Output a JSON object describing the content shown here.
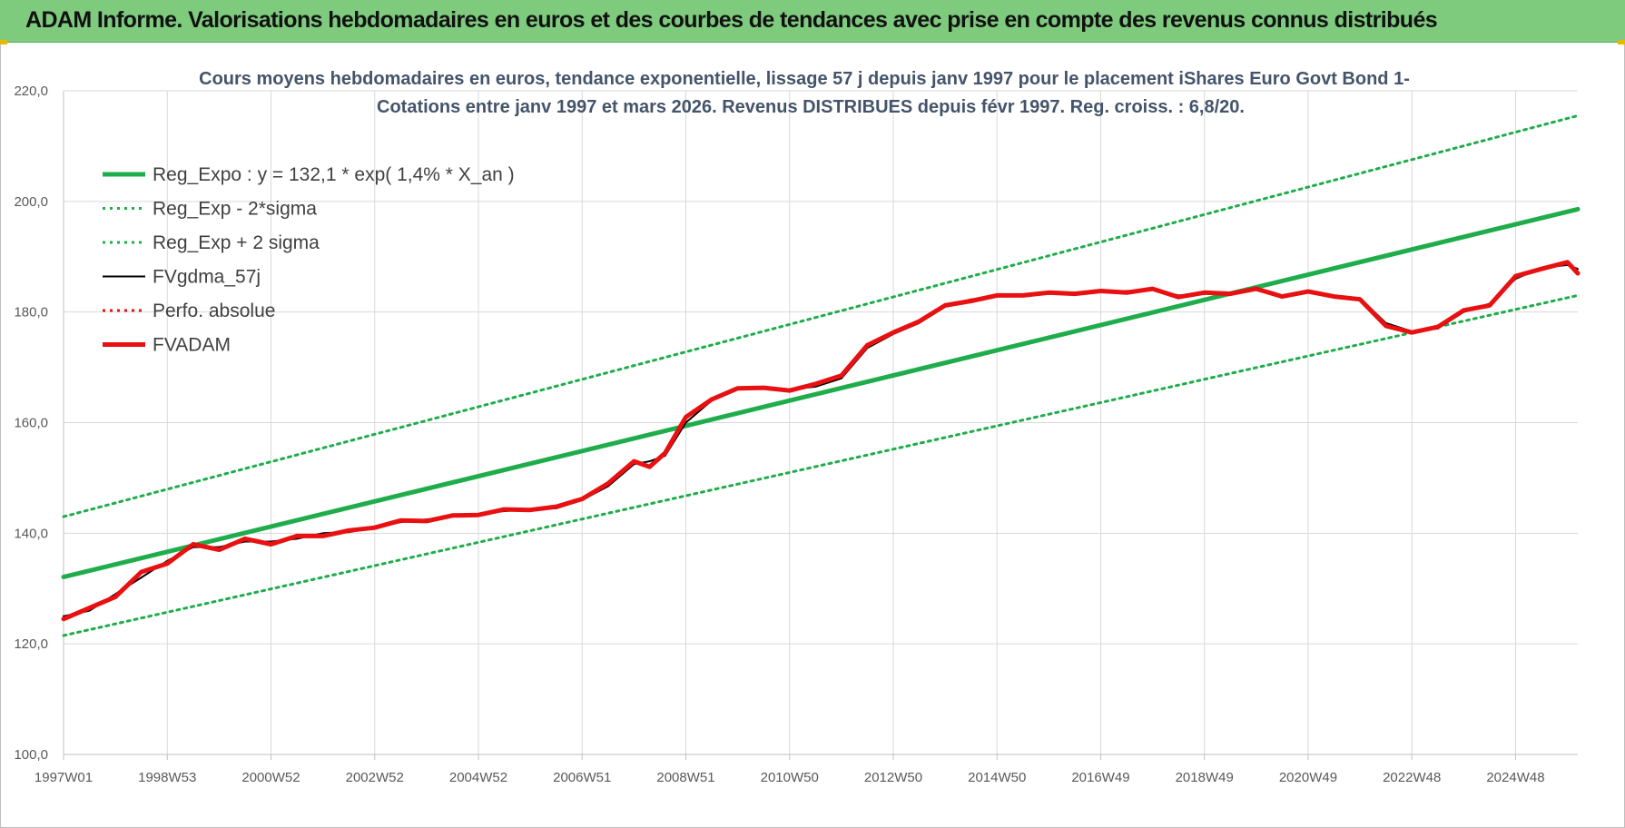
{
  "banner": {
    "title": "ADAM Informe. Valorisations hebdomadaires en euros et des courbes de tendances avec prise en compte des revenus connus distribués",
    "bg_color": "#7ecb7e"
  },
  "chart_data": {
    "type": "line",
    "title_line1": "Cours moyens hebdomadaires en euros, tendance exponentielle, lissage 57 j depuis janv 1997  pour le placement iShares Euro Govt Bond 1-",
    "title_line2": "Cotations entre janv 1997 et mars 2026. Revenus DISTRIBUES depuis févr 1997. Reg. croiss. : 6,8/20.",
    "xlabel": "",
    "ylabel": "",
    "xlim": [
      1997.0,
      2026.2
    ],
    "ylim": [
      100,
      220
    ],
    "grid": true,
    "legend_position": "top-left",
    "y_ticks": [
      "100,0",
      "120,0",
      "140,0",
      "160,0",
      "180,0",
      "200,0",
      "220,0"
    ],
    "x_ticks": [
      {
        "label": "1997W01",
        "t": 1997.0
      },
      {
        "label": "1998W53",
        "t": 1999.0
      },
      {
        "label": "2000W52",
        "t": 2001.0
      },
      {
        "label": "2002W52",
        "t": 2003.0
      },
      {
        "label": "2004W52",
        "t": 2005.0
      },
      {
        "label": "2006W51",
        "t": 2007.0
      },
      {
        "label": "2008W51",
        "t": 2009.0
      },
      {
        "label": "2010W50",
        "t": 2011.0
      },
      {
        "label": "2012W50",
        "t": 2013.0
      },
      {
        "label": "2014W50",
        "t": 2015.0
      },
      {
        "label": "2016W49",
        "t": 2017.0
      },
      {
        "label": "2018W49",
        "t": 2019.0
      },
      {
        "label": "2020W49",
        "t": 2021.0
      },
      {
        "label": "2022W48",
        "t": 2023.0
      },
      {
        "label": "2024W48",
        "t": 2025.0
      }
    ],
    "series": [
      {
        "name": "Reg_Expo : y = 132,1 * exp( 1,4% *  X_an )",
        "color": "#1fad4b",
        "style": "thick",
        "x": [
          1997.0,
          2026.2
        ],
        "y": [
          132.1,
          198.6
        ]
      },
      {
        "name": "Reg_Exp - 2*sigma",
        "color": "#1fad4b",
        "style": "dotted",
        "x": [
          1997.0,
          2026.2
        ],
        "y": [
          121.5,
          183.0
        ]
      },
      {
        "name": "Reg_Exp + 2 sigma",
        "color": "#1fad4b",
        "style": "dotted",
        "x": [
          1997.0,
          2026.2
        ],
        "y": [
          143.0,
          215.5
        ]
      },
      {
        "name": "FVgdma_57j",
        "color": "#000000",
        "style": "thin",
        "x": [
          1997.0,
          1997.5,
          1998.0,
          1998.5,
          1999.0,
          1999.5,
          2000.0,
          2000.5,
          2001.0,
          2001.5,
          2002.0,
          2002.5,
          2003.0,
          2003.5,
          2004.0,
          2004.5,
          2005.0,
          2005.5,
          2006.0,
          2006.5,
          2007.0,
          2007.5,
          2008.0,
          2008.3,
          2008.6,
          2009.0,
          2009.5,
          2010.0,
          2010.5,
          2011.0,
          2011.5,
          2012.0,
          2012.5,
          2013.0,
          2013.5,
          2014.0,
          2014.5,
          2015.0,
          2015.5,
          2016.0,
          2016.5,
          2017.0,
          2017.5,
          2018.0,
          2018.5,
          2019.0,
          2019.5,
          2020.0,
          2020.5,
          2021.0,
          2021.5,
          2022.0,
          2022.5,
          2023.0,
          2023.5,
          2024.0,
          2024.5,
          2025.0,
          2025.5,
          2026.0,
          2026.2
        ],
        "y": [
          125.0,
          126.0,
          129.0,
          132.0,
          135.0,
          137.5,
          137.5,
          138.5,
          138.5,
          139.0,
          140.0,
          140.2,
          141.0,
          142.0,
          142.5,
          143.0,
          143.5,
          144.0,
          144.3,
          144.5,
          146.0,
          148.5,
          152.5,
          153.0,
          154.0,
          160.0,
          164.0,
          166.0,
          166.5,
          166.0,
          166.5,
          168.0,
          173.5,
          176.0,
          178.0,
          181.0,
          182.3,
          182.8,
          183.2,
          183.3,
          183.5,
          183.6,
          183.8,
          184.0,
          183.0,
          183.3,
          183.5,
          184.0,
          183.0,
          183.5,
          183.0,
          182.5,
          178.0,
          176.5,
          177.0,
          180.0,
          181.5,
          186.0,
          188.0,
          188.5,
          187.8
        ]
      },
      {
        "name": "Perfo. absolue",
        "color": "#e81010",
        "style": "dotted",
        "x": [],
        "y": []
      },
      {
        "name": "FVADAM",
        "color": "#e81010",
        "style": "thick",
        "x": [
          1997.0,
          1997.5,
          1998.0,
          1998.5,
          1999.0,
          1999.5,
          2000.0,
          2000.5,
          2001.0,
          2001.5,
          2002.0,
          2002.5,
          2003.0,
          2003.5,
          2004.0,
          2004.5,
          2005.0,
          2005.5,
          2006.0,
          2006.5,
          2007.0,
          2007.5,
          2008.0,
          2008.3,
          2008.6,
          2009.0,
          2009.5,
          2010.0,
          2010.5,
          2011.0,
          2011.5,
          2012.0,
          2012.5,
          2013.0,
          2013.5,
          2014.0,
          2014.5,
          2015.0,
          2015.5,
          2016.0,
          2016.5,
          2017.0,
          2017.5,
          2018.0,
          2018.5,
          2019.0,
          2019.5,
          2020.0,
          2020.5,
          2021.0,
          2021.5,
          2022.0,
          2022.5,
          2023.0,
          2023.5,
          2024.0,
          2024.5,
          2025.0,
          2025.5,
          2026.0,
          2026.2
        ],
        "y": [
          124.5,
          126.5,
          128.5,
          133.0,
          134.5,
          138.0,
          137.0,
          139.0,
          138.0,
          139.5,
          139.5,
          140.5,
          141.0,
          142.3,
          142.2,
          143.2,
          143.3,
          144.3,
          144.2,
          144.8,
          146.2,
          149.0,
          153.0,
          152.0,
          154.5,
          161.0,
          164.2,
          166.2,
          166.3,
          165.8,
          167.0,
          168.5,
          174.0,
          176.3,
          178.3,
          181.2,
          182.0,
          183.0,
          183.0,
          183.5,
          183.3,
          183.8,
          183.5,
          184.2,
          182.7,
          183.5,
          183.3,
          184.2,
          182.8,
          183.7,
          182.8,
          182.3,
          177.5,
          176.3,
          177.3,
          180.3,
          181.2,
          186.5,
          187.8,
          189.0,
          187.0
        ]
      }
    ]
  }
}
